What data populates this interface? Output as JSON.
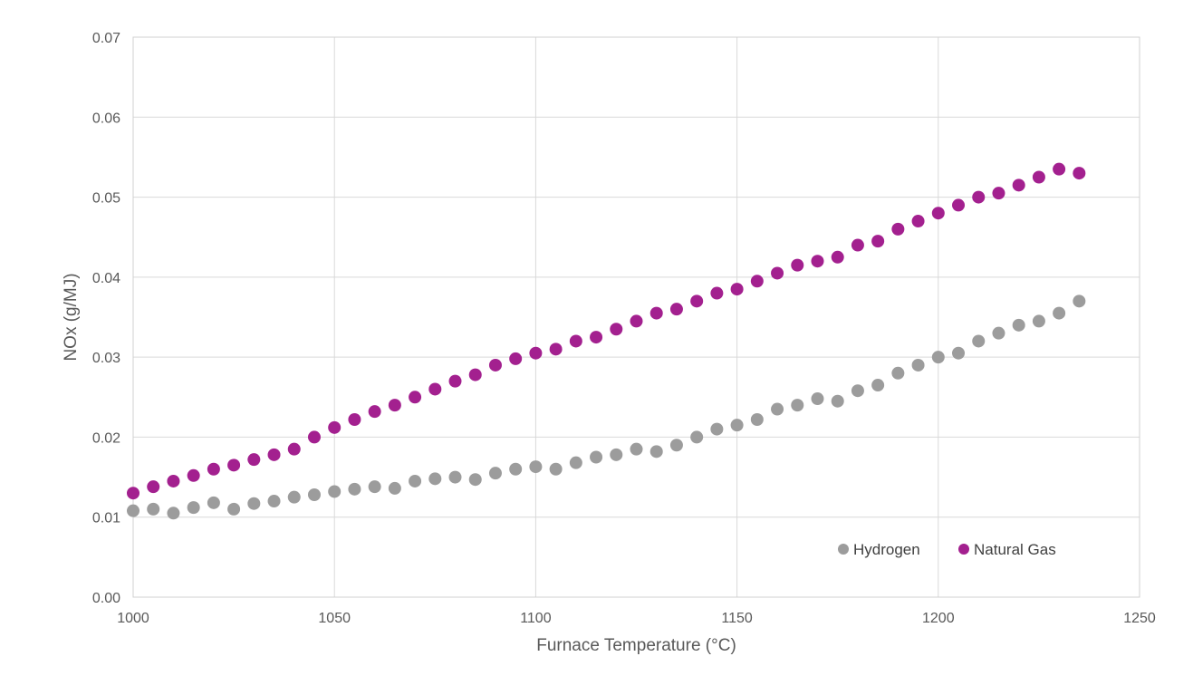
{
  "chart_data": {
    "type": "scatter",
    "title": "",
    "xlabel": "Furnace Temperature (°C)",
    "ylabel": "NOx (g/MJ)",
    "xlim": [
      1000,
      1250
    ],
    "ylim": [
      0,
      0.07
    ],
    "x_ticks": [
      "1000",
      "1050",
      "1100",
      "1150",
      "1200",
      "1250"
    ],
    "y_ticks": [
      "0.00",
      "0.01",
      "0.02",
      "0.03",
      "0.04",
      "0.05",
      "0.06",
      "0.07"
    ],
    "grid": true,
    "legend_position": "bottom-right",
    "series": [
      {
        "name": "Hydrogen",
        "color": "#9c9c9c",
        "x": [
          1000,
          1005,
          1010,
          1015,
          1020,
          1025,
          1030,
          1035,
          1040,
          1045,
          1050,
          1055,
          1060,
          1065,
          1070,
          1075,
          1080,
          1085,
          1090,
          1095,
          1100,
          1105,
          1110,
          1115,
          1120,
          1125,
          1130,
          1135,
          1140,
          1145,
          1150,
          1155,
          1160,
          1165,
          1170,
          1175,
          1180,
          1185,
          1190,
          1195,
          1200,
          1205,
          1210,
          1215,
          1220,
          1225,
          1230,
          1235
        ],
        "y": [
          0.0108,
          0.011,
          0.0105,
          0.0112,
          0.0118,
          0.011,
          0.0117,
          0.012,
          0.0125,
          0.0128,
          0.0132,
          0.0135,
          0.0138,
          0.0136,
          0.0145,
          0.0148,
          0.015,
          0.0147,
          0.0155,
          0.016,
          0.0163,
          0.016,
          0.0168,
          0.0175,
          0.0178,
          0.0185,
          0.0182,
          0.019,
          0.02,
          0.021,
          0.0215,
          0.0222,
          0.0235,
          0.024,
          0.0248,
          0.0245,
          0.0258,
          0.0265,
          0.028,
          0.029,
          0.03,
          0.0305,
          0.032,
          0.033,
          0.034,
          0.0345,
          0.0355,
          0.037
        ]
      },
      {
        "name": "Natural Gas",
        "color": "#a3208f",
        "x": [
          1000,
          1005,
          1010,
          1015,
          1020,
          1025,
          1030,
          1035,
          1040,
          1045,
          1050,
          1055,
          1060,
          1065,
          1070,
          1075,
          1080,
          1085,
          1090,
          1095,
          1100,
          1105,
          1110,
          1115,
          1120,
          1125,
          1130,
          1135,
          1140,
          1145,
          1150,
          1155,
          1160,
          1165,
          1170,
          1175,
          1180,
          1185,
          1190,
          1195,
          1200,
          1205,
          1210,
          1215,
          1220,
          1225,
          1230,
          1235
        ],
        "y": [
          0.013,
          0.0138,
          0.0145,
          0.0152,
          0.016,
          0.0165,
          0.0172,
          0.0178,
          0.0185,
          0.02,
          0.0212,
          0.0222,
          0.0232,
          0.024,
          0.025,
          0.026,
          0.027,
          0.0278,
          0.029,
          0.0298,
          0.0305,
          0.031,
          0.032,
          0.0325,
          0.0335,
          0.0345,
          0.0355,
          0.036,
          0.037,
          0.038,
          0.0385,
          0.0395,
          0.0405,
          0.0415,
          0.042,
          0.0425,
          0.044,
          0.0445,
          0.046,
          0.047,
          0.048,
          0.049,
          0.05,
          0.0505,
          0.0515,
          0.0525,
          0.0535,
          0.053
        ]
      }
    ]
  }
}
